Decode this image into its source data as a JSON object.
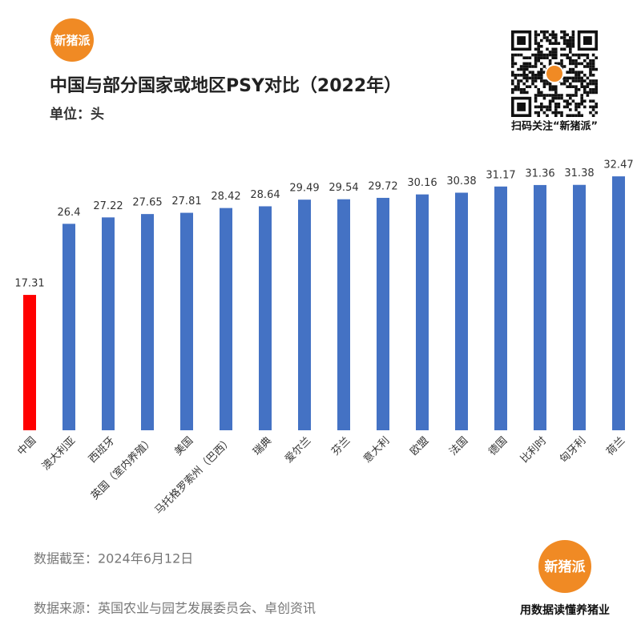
{
  "chart_data": {
    "type": "bar",
    "title": "中国与部分国家或地区PSY对比（2022年）",
    "subtitle": "单位：头",
    "categories": [
      "中国",
      "澳大利亚",
      "西班牙",
      "英国（室内养殖）",
      "美国",
      "马托格罗索州（巴西）",
      "瑞典",
      "爱尔兰",
      "芬兰",
      "意大利",
      "欧盟",
      "法国",
      "德国",
      "比利时",
      "匈牙利",
      "荷兰"
    ],
    "values": [
      17.31,
      26.4,
      27.22,
      27.65,
      27.81,
      28.42,
      28.64,
      29.49,
      29.54,
      29.72,
      30.16,
      30.38,
      31.17,
      31.36,
      31.38,
      32.47
    ],
    "colors": [
      "#ff0000",
      "#4472c4",
      "#4472c4",
      "#4472c4",
      "#4472c4",
      "#4472c4",
      "#4472c4",
      "#4472c4",
      "#4472c4",
      "#4472c4",
      "#4472c4",
      "#4472c4",
      "#4472c4",
      "#4472c4",
      "#4472c4",
      "#4472c4"
    ]
  },
  "branding": {
    "logo": "新猪派",
    "qr_caption": "扫码关注“新猪派”",
    "slogan": "用数据读懂养猪业"
  },
  "footer": {
    "date_note": "数据截至：2024年6月12日",
    "source": "数据来源：英国农业与园艺发展委员会、卓创资讯"
  }
}
